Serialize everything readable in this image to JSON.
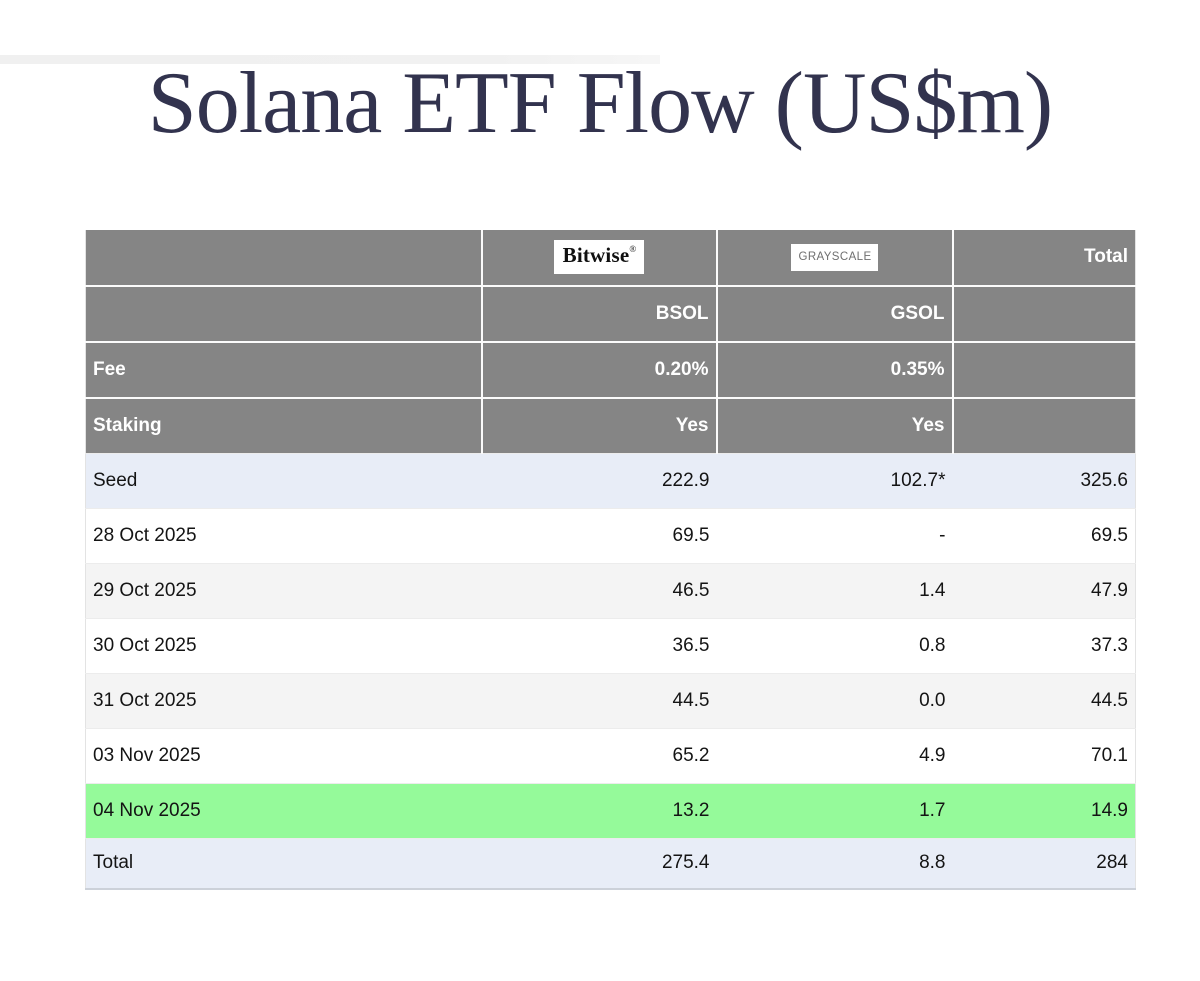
{
  "title": "Solana ETF Flow (US$m)",
  "logos": {
    "bitwise": "Bitwise",
    "bitwise_mark": "®",
    "grayscale": "GRAYSCALE"
  },
  "header": {
    "total_label": "Total",
    "ticker_row": {
      "label": "",
      "bsol": "BSOL",
      "gsol": "GSOL",
      "total": ""
    },
    "fee_row": {
      "label": "Fee",
      "bsol": "0.20%",
      "gsol": "0.35%",
      "total": ""
    },
    "staking_row": {
      "label": "Staking",
      "bsol": "Yes",
      "gsol": "Yes",
      "total": ""
    }
  },
  "rows": [
    {
      "label": "Seed",
      "bsol": "222.9",
      "gsol": "102.7*",
      "total": "325.6"
    },
    {
      "label": "28 Oct 2025",
      "bsol": "69.5",
      "gsol": "-",
      "total": "69.5"
    },
    {
      "label": "29 Oct 2025",
      "bsol": "46.5",
      "gsol": "1.4",
      "total": "47.9"
    },
    {
      "label": "30 Oct 2025",
      "bsol": "36.5",
      "gsol": "0.8",
      "total": "37.3"
    },
    {
      "label": "31 Oct 2025",
      "bsol": "44.5",
      "gsol": "0.0",
      "total": "44.5"
    },
    {
      "label": "03 Nov 2025",
      "bsol": "65.2",
      "gsol": "4.9",
      "total": "70.1"
    },
    {
      "label": "04 Nov 2025",
      "bsol": "13.2",
      "gsol": "1.7",
      "total": "14.9"
    },
    {
      "label": "Total",
      "bsol": "275.4",
      "gsol": "8.8",
      "total": "284"
    }
  ],
  "colors": {
    "header_gray": "#858585",
    "header_text": "#ffffff",
    "row_blue": "#e8edf7",
    "row_stripe": "#f4f4f4",
    "row_highlight_green": "#95fa9a",
    "title_navy": "#32334e",
    "grayscale_logo_text": "#6f6f6f"
  },
  "chart_data": {
    "type": "table",
    "title": "Solana ETF Flow (US$m)",
    "columns": [
      "",
      "BSOL (Bitwise)",
      "GSOL (Grayscale)",
      "Total"
    ],
    "fund_meta": {
      "BSOL": {
        "issuer": "Bitwise",
        "fee": "0.20%",
        "staking": "Yes"
      },
      "GSOL": {
        "issuer": "Grayscale",
        "fee": "0.35%",
        "staking": "Yes"
      }
    },
    "rows": [
      [
        "Seed",
        222.9,
        "102.7*",
        325.6
      ],
      [
        "28 Oct 2025",
        69.5,
        "-",
        69.5
      ],
      [
        "29 Oct 2025",
        46.5,
        1.4,
        47.9
      ],
      [
        "30 Oct 2025",
        36.5,
        0.8,
        37.3
      ],
      [
        "31 Oct 2025",
        44.5,
        0.0,
        44.5
      ],
      [
        "03 Nov 2025",
        65.2,
        4.9,
        70.1
      ],
      [
        "04 Nov 2025",
        13.2,
        1.7,
        14.9
      ],
      [
        "Total",
        275.4,
        8.8,
        284
      ]
    ],
    "highlighted_row": "04 Nov 2025"
  }
}
